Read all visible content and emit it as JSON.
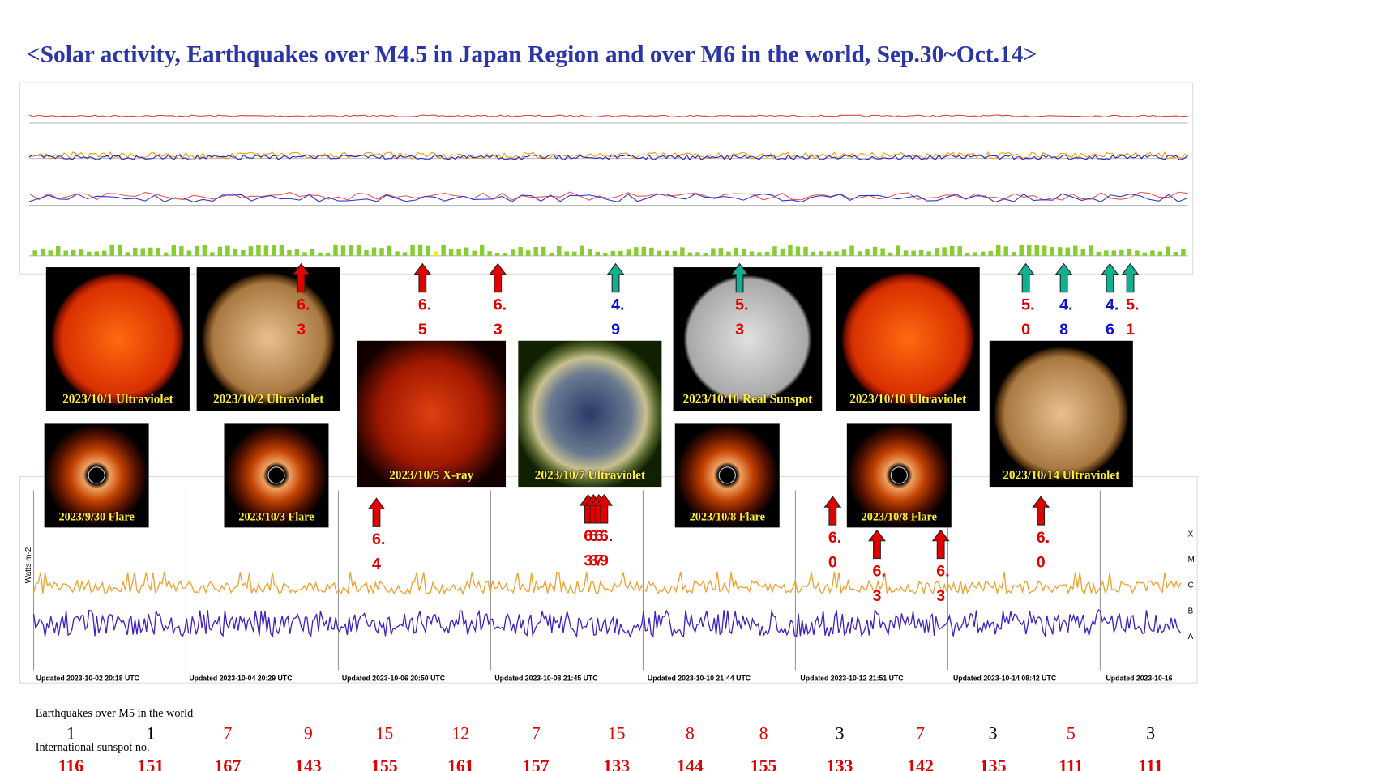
{
  "title": "<Solar activity, Earthquakes over M4.5 in Japan Region and over M6 in the world, Sep.30~Oct.14>",
  "images": [
    {
      "caption": "2023/10/1 Ultraviolet",
      "kind": "uv-red"
    },
    {
      "caption": "2023/10/2 Ultraviolet",
      "kind": "uv-tan"
    },
    {
      "caption": "2023/10/5 X-ray",
      "kind": "xray"
    },
    {
      "caption": "2023/10/7 Ultraviolet",
      "kind": "uv-blue"
    },
    {
      "caption": "2023/10/10 Real Sunspot",
      "kind": "sunspot"
    },
    {
      "caption": "2023/10/10 Ultraviolet",
      "kind": "uv-red"
    },
    {
      "caption": "2023/10/14 Ultraviolet",
      "kind": "uv-tan"
    },
    {
      "caption": "2023/9/30 Flare",
      "kind": "flare"
    },
    {
      "caption": "2023/10/3 Flare",
      "kind": "flare"
    },
    {
      "caption": "2023/10/8 Flare",
      "kind": "flare"
    },
    {
      "caption": "2023/10/8 Flare",
      "kind": "flare"
    }
  ],
  "arrows": [
    {
      "label": "6.3",
      "arrow_color": "red",
      "label_color": "red"
    },
    {
      "label": "6.5",
      "arrow_color": "red",
      "label_color": "red"
    },
    {
      "label": "6.3",
      "arrow_color": "red",
      "label_color": "red"
    },
    {
      "label": "4.9",
      "arrow_color": "green",
      "label_color": "blue"
    },
    {
      "label": "5.3",
      "arrow_color": "green",
      "label_color": "red"
    },
    {
      "label": "5.0",
      "arrow_color": "green",
      "label_color": "red"
    },
    {
      "label": "4.8",
      "arrow_color": "green",
      "label_color": "blue"
    },
    {
      "label": "4.6",
      "arrow_color": "green",
      "label_color": "blue"
    },
    {
      "label": "5.1",
      "arrow_color": "green",
      "label_color": "red"
    },
    {
      "label": "6.4",
      "arrow_color": "red",
      "label_color": "red"
    },
    {
      "label": "6.3",
      "arrow_color": "red",
      "label_color": "red"
    },
    {
      "label": "6.3",
      "arrow_color": "red",
      "label_color": "red"
    },
    {
      "label": "6.7",
      "arrow_color": "red",
      "label_color": "red"
    },
    {
      "label": "6.9",
      "arrow_color": "red",
      "label_color": "red"
    },
    {
      "label": "6.0",
      "arrow_color": "red",
      "label_color": "red"
    },
    {
      "label": "6.3",
      "arrow_color": "red",
      "label_color": "red"
    },
    {
      "label": "6.3",
      "arrow_color": "red",
      "label_color": "red"
    },
    {
      "label": "6.0",
      "arrow_color": "red",
      "label_color": "red"
    }
  ],
  "xray_plot": {
    "y_label": "Watts m-2",
    "classes": [
      "X",
      "M",
      "C",
      "B",
      "A"
    ],
    "updated": [
      "Updated 2023-10-02 20:18 UTC",
      "Updated 2023-10-04 20:29 UTC",
      "Updated 2023-10-06 20:50 UTC",
      "Updated 2023-10-08 21:45 UTC",
      "Updated 2023-10-10 21:44 UTC",
      "Updated 2023-10-12 21:51 UTC",
      "Updated 2023-10-14 08:42 UTC",
      "Updated 2023-10-16"
    ]
  },
  "earthquakes": {
    "label": "Earthquakes over M5 in the world",
    "counts": [
      1,
      1,
      7,
      9,
      15,
      12,
      7,
      15,
      8,
      8,
      3,
      7,
      3,
      5,
      3
    ],
    "colors": [
      "black",
      "black",
      "red",
      "red",
      "red",
      "red",
      "red",
      "red",
      "red",
      "red",
      "black",
      "red",
      "black",
      "red",
      "black"
    ]
  },
  "sunspots": {
    "label": "International sunspot no.",
    "values": [
      116,
      151,
      167,
      143,
      155,
      161,
      157,
      133,
      144,
      155,
      133,
      142,
      135,
      111,
      111
    ]
  }
}
